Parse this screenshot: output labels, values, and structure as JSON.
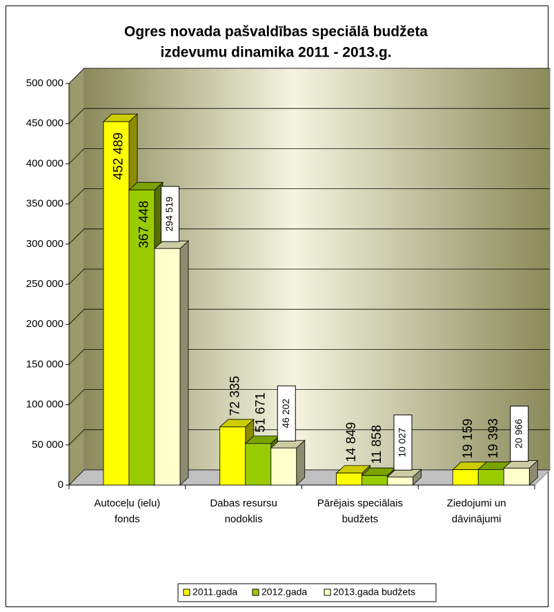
{
  "chart_data": {
    "type": "bar3d",
    "title": [
      "Ogres novada pašvaldības speciālā budžeta",
      "izdevumu dinamika 2011 - 2013.g."
    ],
    "categories": [
      [
        "Autoceļu (ielu)",
        "fonds"
      ],
      [
        "Dabas resursu",
        "nodoklis"
      ],
      [
        "Pārējais speciālais",
        "budžets"
      ],
      [
        "Ziedojumi un",
        "dāvinājumi"
      ]
    ],
    "series": [
      {
        "name": "2011.gada",
        "color": "#ffff00",
        "values": [
          452489,
          72335,
          14849,
          19159
        ],
        "value_labels": [
          "452 489",
          "72 335",
          "14 849",
          "19 159"
        ]
      },
      {
        "name": "2012.gada",
        "color": "#99cc00",
        "values": [
          367448,
          51671,
          11858,
          19393
        ],
        "value_labels": [
          "367 448",
          "51 671",
          "11 858",
          "19 393"
        ]
      },
      {
        "name": "2013.gada budžets",
        "color": "#ffffcc",
        "values": [
          294519,
          46202,
          10027,
          20966
        ],
        "value_labels": [
          "294 519",
          "46 202",
          "10 027",
          "20 966"
        ]
      }
    ],
    "ylim": [
      0,
      500000
    ],
    "yticks": [
      0,
      {
        "value": 50000,
        "label": "50 000"
      },
      {
        "value": 100000,
        "label": "100 000"
      },
      {
        "value": 150000,
        "label": "150 000"
      },
      {
        "value": 200000,
        "label": "200 000"
      },
      {
        "value": 250000,
        "label": "250 000"
      },
      {
        "value": 300000,
        "label": "300 000"
      },
      {
        "value": 350000,
        "label": "350 000"
      },
      {
        "value": 400000,
        "label": "400 000"
      },
      {
        "value": 450000,
        "label": "450 000"
      },
      {
        "value": 500000,
        "label": "500 000"
      }
    ],
    "grid": true,
    "legend": "bottom"
  }
}
